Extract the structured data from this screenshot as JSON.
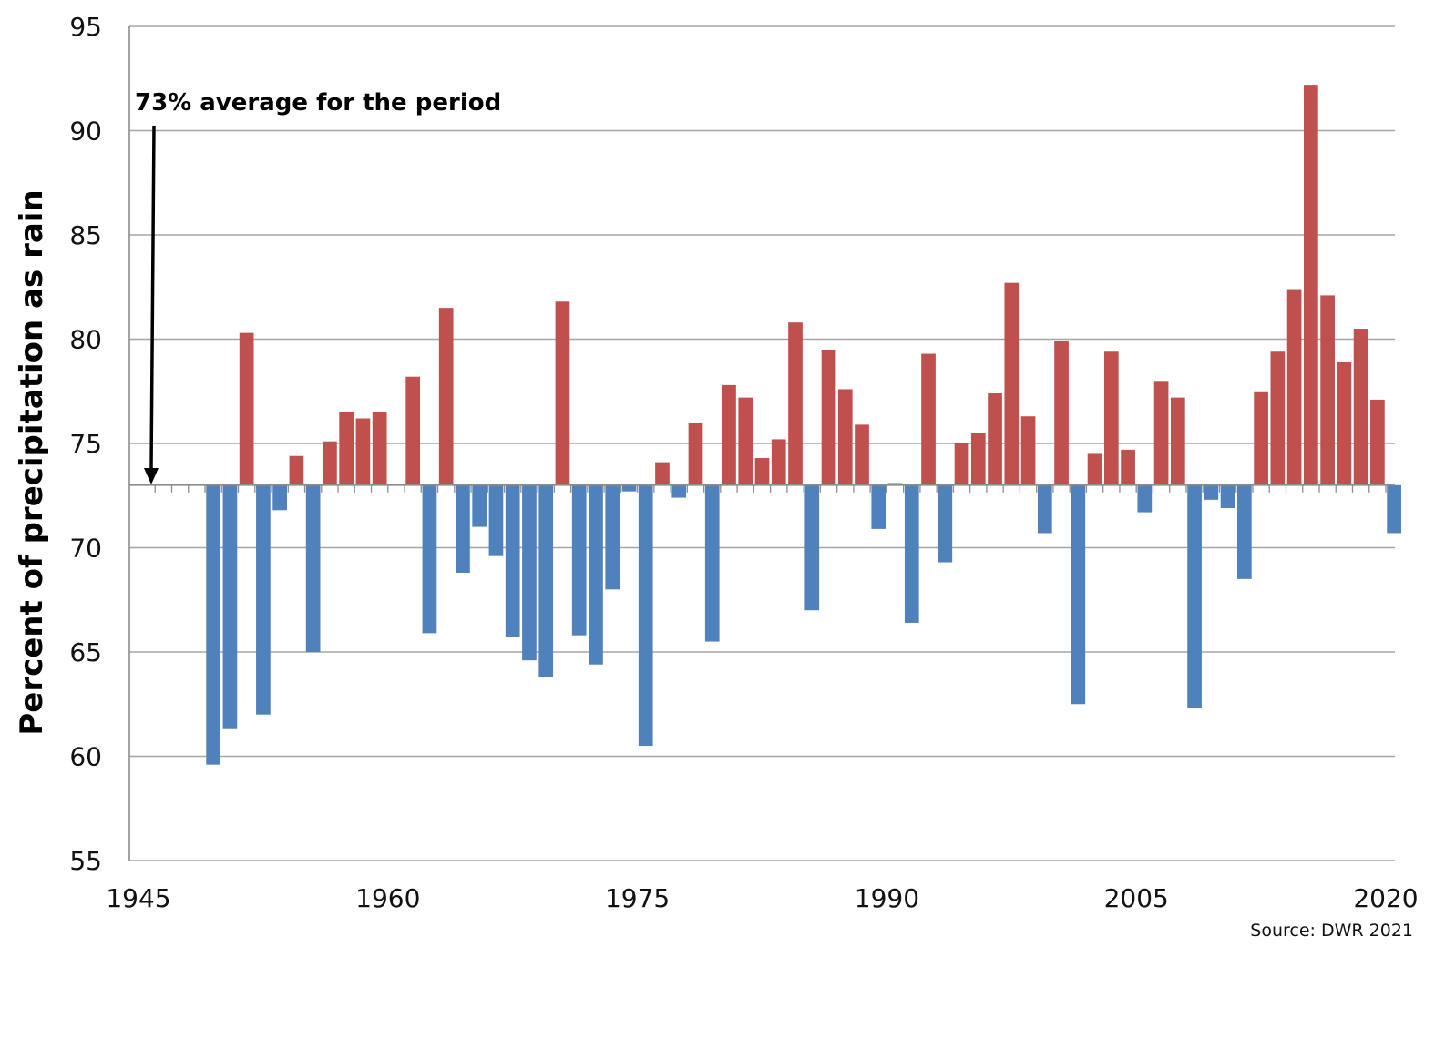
{
  "chart_data": {
    "type": "bar",
    "title": "",
    "xlabel": "",
    "ylabel": "Percent of precipitation as rain",
    "ylim": [
      55,
      95
    ],
    "yticks": [
      55,
      60,
      65,
      70,
      75,
      80,
      85,
      90,
      95
    ],
    "xlim": [
      1945,
      2020
    ],
    "xticks": [
      1945,
      1960,
      1975,
      1990,
      2005,
      2020
    ],
    "baseline": 73,
    "grid": true,
    "annotation": "73% average for the period",
    "source": "Source: DWR 2021",
    "colors": {
      "above": "#c0504d",
      "below": "#4f81bd",
      "grid": "#a6a6a6",
      "axis": "#8c8c8c"
    },
    "x": [
      1948,
      1949,
      1950,
      1951,
      1952,
      1953,
      1954,
      1955,
      1956,
      1957,
      1958,
      1959,
      1960,
      1961,
      1962,
      1963,
      1964,
      1965,
      1966,
      1967,
      1968,
      1969,
      1970,
      1971,
      1972,
      1973,
      1974,
      1975,
      1976,
      1977,
      1978,
      1979,
      1980,
      1981,
      1982,
      1983,
      1984,
      1985,
      1986,
      1987,
      1988,
      1989,
      1990,
      1991,
      1992,
      1993,
      1994,
      1995,
      1996,
      1997,
      1998,
      1999,
      2000,
      2001,
      2002,
      2003,
      2004,
      2005,
      2006,
      2007,
      2008,
      2009,
      2010,
      2011,
      2012,
      2013,
      2014,
      2015,
      2016,
      2017,
      2018,
      2019,
      2020
    ],
    "values": [
      73,
      59.6,
      61.3,
      80.3,
      62,
      71.8,
      74.4,
      65,
      75.1,
      76.5,
      76.2,
      76.5,
      73,
      78.2,
      65.9,
      81.5,
      68.8,
      71,
      69.6,
      65.7,
      64.6,
      63.8,
      81.8,
      65.8,
      64.4,
      68,
      72.7,
      60.5,
      74.1,
      72.4,
      76,
      65.5,
      77.8,
      77.2,
      74.3,
      75.2,
      80.8,
      67,
      79.5,
      77.6,
      75.9,
      70.9,
      73.1,
      66.4,
      79.3,
      69.3,
      75,
      75.5,
      77.4,
      82.7,
      76.3,
      70.7,
      79.9,
      62.5,
      74.5,
      79.4,
      74.7,
      71.7,
      78,
      77.2,
      62.3,
      72.3,
      71.9,
      68.5,
      77.5,
      79.4,
      82.4,
      92.2,
      82.1,
      78.9,
      80.5,
      77.1,
      70.7
    ]
  }
}
